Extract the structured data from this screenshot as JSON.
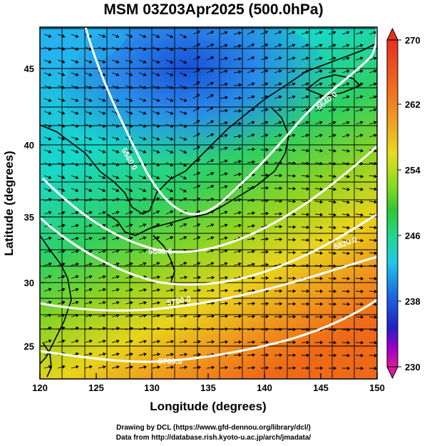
{
  "title": "MSM 03Z03Apr2025 (500.0hPa)",
  "axes": {
    "xlabel": "Longitude (degrees)",
    "ylabel": "Latitude  (degrees)",
    "x_ticks": [
      "120",
      "125",
      "130",
      "135",
      "140",
      "145",
      "150"
    ],
    "y_ticks": [
      "25",
      "30",
      "35",
      "40",
      "45"
    ]
  },
  "colorbar": {
    "labels": [
      "270",
      "262",
      "254",
      "246",
      "238",
      "230"
    ],
    "range": [
      230,
      270
    ],
    "colors": [
      "#d81b9a",
      "#9a00c8",
      "#2020c8",
      "#1c6ae0",
      "#20c8e8",
      "#20d890",
      "#30c830",
      "#80dc20",
      "#e8dc20",
      "#f0a020",
      "#f06c20",
      "#e83020"
    ]
  },
  "contour_labels": [
    "5580.0",
    "5640.0",
    "5640.0",
    "5700.0",
    "5760.0",
    "5820.0"
  ],
  "credits": {
    "line1": "Drawing by DCL (https://www.gfd-dennou.org/library/dcl/)",
    "line2": "Data from http://database.rish.kyoto-u.ac.jp/arch/jmadata/"
  }
}
